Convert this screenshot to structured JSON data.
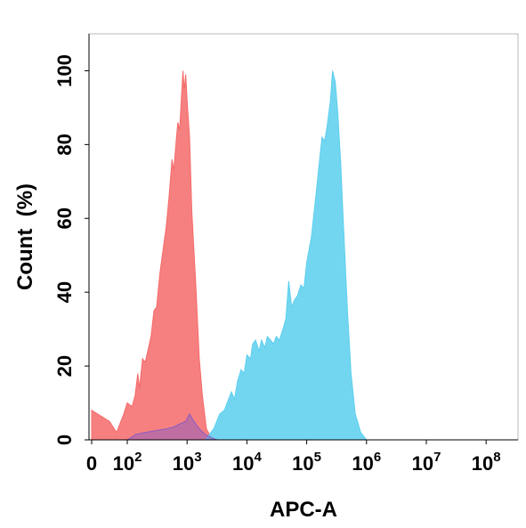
{
  "chart_data": {
    "type": "area",
    "title": "",
    "xlabel": "APC-A",
    "ylabel": "Count  (%)",
    "x_scale": "log",
    "xlim": [
      0,
      100000000
    ],
    "ylim": [
      0,
      110
    ],
    "x_ticks": [
      {
        "value": 0,
        "label": "0"
      },
      {
        "value": 100,
        "label": "10",
        "sup": "2"
      },
      {
        "value": 1000,
        "label": "10",
        "sup": "3"
      },
      {
        "value": 10000,
        "label": "10",
        "sup": "4"
      },
      {
        "value": 100000,
        "label": "10",
        "sup": "5"
      },
      {
        "value": 1000000,
        "label": "10",
        "sup": "6"
      },
      {
        "value": 10000000,
        "label": "10",
        "sup": "7"
      },
      {
        "value": 100000000,
        "label": "10",
        "sup": "8"
      }
    ],
    "y_ticks": [
      0,
      20,
      40,
      60,
      80,
      100
    ],
    "grid": false,
    "legend": "none",
    "series": [
      {
        "color": "#f46a6a",
        "opacity": 0.85,
        "points": [
          [
            0,
            8
          ],
          [
            50,
            5
          ],
          [
            70,
            2
          ],
          [
            90,
            7
          ],
          [
            100,
            10
          ],
          [
            120,
            9
          ],
          [
            135,
            12
          ],
          [
            150,
            18
          ],
          [
            160,
            14
          ],
          [
            180,
            22
          ],
          [
            200,
            21
          ],
          [
            220,
            24
          ],
          [
            250,
            28
          ],
          [
            280,
            35
          ],
          [
            310,
            36
          ],
          [
            350,
            45
          ],
          [
            400,
            52
          ],
          [
            450,
            58
          ],
          [
            500,
            66
          ],
          [
            560,
            76
          ],
          [
            600,
            73
          ],
          [
            650,
            80
          ],
          [
            700,
            86
          ],
          [
            750,
            84
          ],
          [
            800,
            92
          ],
          [
            850,
            100
          ],
          [
            900,
            95
          ],
          [
            950,
            99
          ],
          [
            1000,
            92
          ],
          [
            1100,
            82
          ],
          [
            1200,
            62
          ],
          [
            1400,
            42
          ],
          [
            1600,
            22
          ],
          [
            1800,
            12
          ],
          [
            2100,
            3
          ],
          [
            2500,
            0.8
          ],
          [
            3000,
            0
          ]
        ]
      },
      {
        "color": "#5bcfee",
        "opacity": 0.85,
        "points": [
          [
            2000,
            0
          ],
          [
            2800,
            3
          ],
          [
            3500,
            7
          ],
          [
            4200,
            8
          ],
          [
            5500,
            13
          ],
          [
            6200,
            11
          ],
          [
            7000,
            16
          ],
          [
            8000,
            19
          ],
          [
            9000,
            18
          ],
          [
            10000,
            23
          ],
          [
            11500,
            22
          ],
          [
            12500,
            26
          ],
          [
            14000,
            27
          ],
          [
            16000,
            24
          ],
          [
            17500,
            27
          ],
          [
            20000,
            25
          ],
          [
            22000,
            28
          ],
          [
            25000,
            27
          ],
          [
            28000,
            26
          ],
          [
            31000,
            28
          ],
          [
            35000,
            27
          ],
          [
            40000,
            30
          ],
          [
            45000,
            33
          ],
          [
            50000,
            43
          ],
          [
            56000,
            36
          ],
          [
            63000,
            38
          ],
          [
            70000,
            39
          ],
          [
            80000,
            42
          ],
          [
            90000,
            41
          ],
          [
            100000,
            48
          ],
          [
            120000,
            55
          ],
          [
            140000,
            65
          ],
          [
            160000,
            74
          ],
          [
            180000,
            82
          ],
          [
            200000,
            81
          ],
          [
            220000,
            85
          ],
          [
            250000,
            92
          ],
          [
            270000,
            100
          ],
          [
            300000,
            97
          ],
          [
            330000,
            89
          ],
          [
            370000,
            75
          ],
          [
            420000,
            55
          ],
          [
            480000,
            35
          ],
          [
            550000,
            18
          ],
          [
            650000,
            7
          ],
          [
            800000,
            2
          ],
          [
            1000000,
            0
          ]
        ]
      },
      {
        "color": "#8a5bc4",
        "opacity": 0.5,
        "points": [
          [
            100,
            0
          ],
          [
            140,
            1.5
          ],
          [
            200,
            2
          ],
          [
            300,
            2.5
          ],
          [
            450,
            3
          ],
          [
            600,
            3.5
          ],
          [
            800,
            4.5
          ],
          [
            950,
            5
          ],
          [
            1100,
            7
          ],
          [
            1300,
            5
          ],
          [
            1600,
            3
          ],
          [
            2000,
            1.5
          ],
          [
            2600,
            0.5
          ],
          [
            3200,
            0
          ]
        ]
      }
    ]
  }
}
